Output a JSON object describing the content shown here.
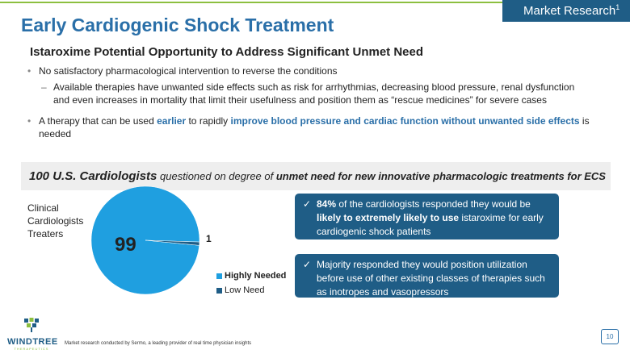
{
  "header": {
    "market_tab": "Market Research",
    "market_tab_sup": "1",
    "title": "Early Cardiogenic Shock Treatment",
    "subtitle": "Istaroxime Potential Opportunity to Address Significant Unmet Need"
  },
  "bullets": {
    "b1": "No satisfactory pharmacological intervention to reverse the conditions",
    "b1_sub": "Available therapies have unwanted side effects such as risk for arrhythmias, decreasing blood pressure, renal dysfunction and even increases in mortality that limit their usefulness and position them as “rescue medicines” for severe cases",
    "b2_pre": "A therapy that can be used ",
    "b2_h1": "earlier",
    "b2_mid": " to rapidly ",
    "b2_h2": "improve blood pressure and cardiac function without unwanted side effects",
    "b2_post": " is needed"
  },
  "survey_band": {
    "lead": "100 U.S. Cardiologists",
    "middle": " questioned on degree of ",
    "emph": "unmet need for new innovative pharmacologic treatments for ECS"
  },
  "chart_data": {
    "type": "pie",
    "group_label": "Clinical Cardiologists Treaters",
    "slices": [
      {
        "label": "Highly Needed",
        "value": 99,
        "color": "#1f9fe0"
      },
      {
        "label": "Low Need",
        "value": 1,
        "color": "#1f5d86"
      }
    ]
  },
  "callouts": {
    "c1_pct": "84%",
    "c1_text1": " of the cardiologists responded they would be ",
    "c1_emph": "likely to extremely likely to use",
    "c1_text2": " istaroxime for early cardiogenic shock patients",
    "c2_text": "Majority responded they would position utilization before use of other existing classes of therapies such as inotropes and vasopressors"
  },
  "footer": {
    "logo_text": "WINDTREE",
    "logo_sub": "THERAPEUTICS",
    "footnote": "Market research conducted by Sermo, a leading provider of real time physician insights",
    "page_number": "10"
  },
  "colors": {
    "title_blue": "#2a6fa8",
    "dark_blue": "#1f5d86",
    "green": "#8cbf3f"
  }
}
